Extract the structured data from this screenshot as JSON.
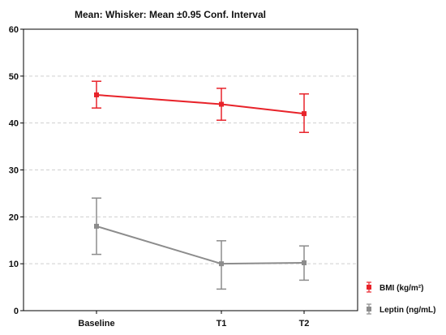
{
  "chart_data": {
    "type": "line",
    "title": "Mean: Whisker: Mean ±0.95 Conf. Interval",
    "categories": [
      "Baseline",
      "T1",
      "T2"
    ],
    "ylim": [
      0,
      60
    ],
    "yticks": [
      0,
      10,
      20,
      30,
      40,
      50,
      60
    ],
    "grid": true,
    "legend_position": "bottom-right",
    "series": [
      {
        "name": "BMI (kg/m²)",
        "color": "#e8232a",
        "values": [
          46,
          44,
          42
        ],
        "lower": [
          43.2,
          40.6,
          38.0
        ],
        "upper": [
          48.9,
          47.4,
          46.2
        ]
      },
      {
        "name": "Leptin (ng/mL)",
        "color": "#8c8c8c",
        "values": [
          18,
          10,
          10.2
        ],
        "lower": [
          12.0,
          4.6,
          6.5
        ],
        "upper": [
          24.0,
          14.9,
          13.8
        ]
      }
    ]
  }
}
